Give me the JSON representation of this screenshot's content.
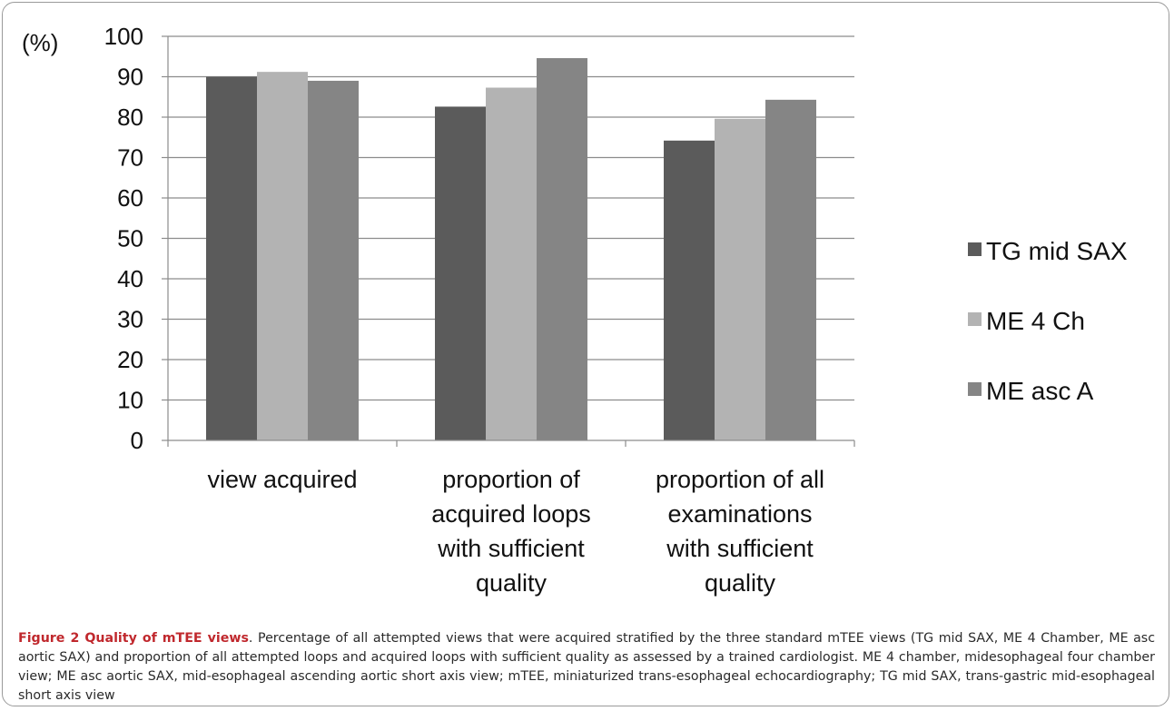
{
  "chart_data": {
    "type": "bar",
    "ylabel": "(%)",
    "ylim": [
      0,
      100
    ],
    "yticks": [
      0,
      10,
      20,
      30,
      40,
      50,
      60,
      70,
      80,
      90,
      100
    ],
    "grid": true,
    "legend_position": "right",
    "categories": [
      [
        "view acquired"
      ],
      [
        "proportion of",
        "acquired loops",
        "with sufficient",
        "quality"
      ],
      [
        "proportion of all",
        "examinations",
        "with sufficient",
        "quality"
      ]
    ],
    "series": [
      {
        "name": "TG mid SAX",
        "color": "#5b5b5b",
        "values": [
          90,
          82.6,
          74.2
        ]
      },
      {
        "name": "ME 4 Ch",
        "color": "#b3b3b3",
        "values": [
          91.2,
          87.3,
          79.6
        ]
      },
      {
        "name": "ME asc A",
        "color": "#858585",
        "values": [
          89,
          94.6,
          84.3
        ]
      }
    ]
  },
  "caption": {
    "title": "Figure 2 Quality of mTEE views",
    "text": ". Percentage of all attempted views that were acquired stratified by the three standard mTEE views (TG mid SAX, ME 4 Chamber, ME asc aortic SAX) and proportion of all attempted loops and acquired loops with sufficient quality as assessed by a trained cardiologist. ME 4 chamber, midesophageal four chamber view; ME asc aortic SAX, mid-esophageal ascending aortic short axis view; mTEE, miniaturized trans-esophageal echocardiography; TG mid SAX, trans-gastric mid-esophageal short axis view"
  }
}
